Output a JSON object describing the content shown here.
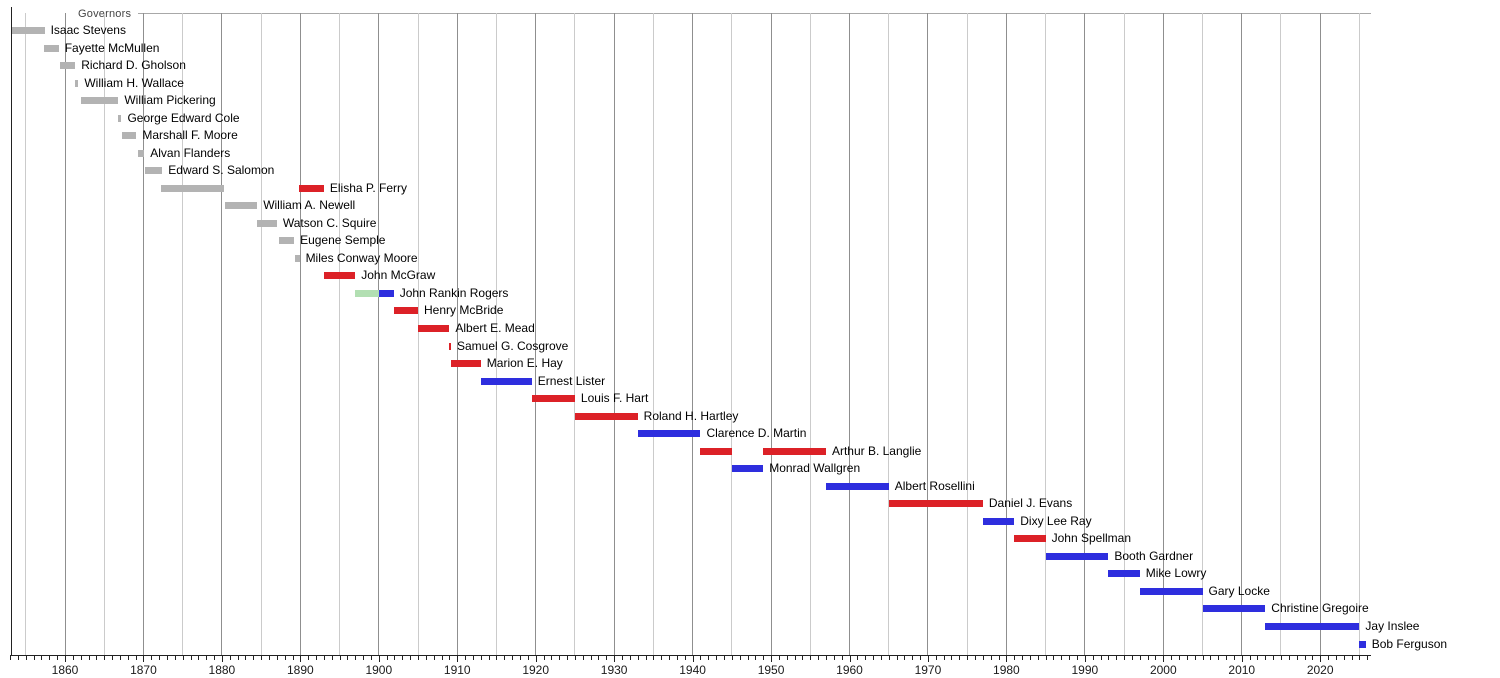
{
  "chart_data": {
    "type": "bar",
    "variant": "gantt-timeline",
    "title": "Governors",
    "xlabel": "",
    "ylabel": "",
    "xlim": [
      1853.0,
      2026.5
    ],
    "x_axis": {
      "decade_labels": [
        1860,
        1870,
        1880,
        1890,
        1900,
        1910,
        1920,
        1930,
        1940,
        1950,
        1960,
        1970,
        1980,
        1990,
        2000,
        2010,
        2020
      ],
      "gridline_interval_years": 5,
      "minor_tick_interval_years": 1,
      "grid_on": true
    },
    "colors": {
      "territorial": "#b3b3b3",
      "republican": "#dc2127",
      "democrat": "#2e2ede",
      "populist": "#b2dfb2",
      "grid_minor": "#cbcbcb",
      "grid_major": "#8f8f8f",
      "axis": "#222222",
      "title_text": "#444444",
      "title_rule": "#a8a8a8",
      "label_text": "#000000"
    },
    "governors": [
      {
        "name": "Isaac Stevens",
        "segments": [
          {
            "start": 1853.2,
            "end": 1857.4,
            "party": "territorial"
          }
        ]
      },
      {
        "name": "Fayette McMullen",
        "segments": [
          {
            "start": 1857.3,
            "end": 1859.2,
            "party": "territorial"
          }
        ]
      },
      {
        "name": "Richard D. Gholson",
        "segments": [
          {
            "start": 1859.3,
            "end": 1861.3,
            "party": "territorial"
          }
        ]
      },
      {
        "name": "William H. Wallace",
        "segments": [
          {
            "start": 1861.3,
            "end": 1861.7,
            "party": "territorial"
          }
        ]
      },
      {
        "name": "William Pickering",
        "segments": [
          {
            "start": 1862.0,
            "end": 1866.8,
            "party": "territorial"
          }
        ]
      },
      {
        "name": "George Edward Cole",
        "segments": [
          {
            "start": 1866.8,
            "end": 1867.2,
            "party": "territorial"
          }
        ]
      },
      {
        "name": "Marshall F. Moore",
        "segments": [
          {
            "start": 1867.3,
            "end": 1869.1,
            "party": "territorial"
          }
        ]
      },
      {
        "name": "Alvan Flanders",
        "segments": [
          {
            "start": 1869.3,
            "end": 1870.1,
            "party": "territorial"
          }
        ]
      },
      {
        "name": "Edward S. Salomon",
        "segments": [
          {
            "start": 1870.2,
            "end": 1872.4,
            "party": "territorial"
          }
        ]
      },
      {
        "name": "Elisha P. Ferry",
        "segments": [
          {
            "start": 1872.3,
            "end": 1880.3,
            "party": "territorial"
          },
          {
            "start": 1889.8,
            "end": 1893.0,
            "party": "republican"
          }
        ]
      },
      {
        "name": "William A. Newell",
        "segments": [
          {
            "start": 1880.4,
            "end": 1884.5,
            "party": "territorial"
          }
        ]
      },
      {
        "name": "Watson C. Squire",
        "segments": [
          {
            "start": 1884.5,
            "end": 1887.0,
            "party": "territorial"
          }
        ]
      },
      {
        "name": "Eugene Semple",
        "segments": [
          {
            "start": 1887.3,
            "end": 1889.2,
            "party": "territorial"
          }
        ]
      },
      {
        "name": "Miles Conway Moore",
        "segments": [
          {
            "start": 1889.3,
            "end": 1889.9,
            "party": "territorial"
          }
        ]
      },
      {
        "name": "John McGraw",
        "segments": [
          {
            "start": 1893.0,
            "end": 1897.0,
            "party": "republican"
          }
        ]
      },
      {
        "name": "John Rankin Rogers",
        "segments": [
          {
            "start": 1897.0,
            "end": 1900.0,
            "party": "populist"
          },
          {
            "start": 1900.0,
            "end": 1901.9,
            "party": "democrat"
          }
        ]
      },
      {
        "name": "Henry McBride",
        "segments": [
          {
            "start": 1901.9,
            "end": 1905.0,
            "party": "republican"
          }
        ]
      },
      {
        "name": "Albert E. Mead",
        "segments": [
          {
            "start": 1905.0,
            "end": 1909.0,
            "party": "republican"
          }
        ]
      },
      {
        "name": "Samuel G. Cosgrove",
        "segments": [
          {
            "start": 1909.0,
            "end": 1909.2,
            "party": "republican"
          }
        ]
      },
      {
        "name": "Marion E. Hay",
        "segments": [
          {
            "start": 1909.2,
            "end": 1913.0,
            "party": "republican"
          }
        ]
      },
      {
        "name": "Ernest Lister",
        "segments": [
          {
            "start": 1913.0,
            "end": 1919.5,
            "party": "democrat"
          }
        ]
      },
      {
        "name": "Louis F. Hart",
        "segments": [
          {
            "start": 1919.5,
            "end": 1925.0,
            "party": "republican"
          }
        ]
      },
      {
        "name": "Roland H. Hartley",
        "segments": [
          {
            "start": 1925.0,
            "end": 1933.0,
            "party": "republican"
          }
        ]
      },
      {
        "name": "Clarence D. Martin",
        "segments": [
          {
            "start": 1933.0,
            "end": 1941.0,
            "party": "democrat"
          }
        ]
      },
      {
        "name": "Arthur B. Langlie",
        "segments": [
          {
            "start": 1941.0,
            "end": 1945.0,
            "party": "republican"
          },
          {
            "start": 1949.0,
            "end": 1957.0,
            "party": "republican"
          }
        ]
      },
      {
        "name": "Monrad Wallgren",
        "segments": [
          {
            "start": 1945.0,
            "end": 1949.0,
            "party": "democrat"
          }
        ]
      },
      {
        "name": "Albert Rosellini",
        "segments": [
          {
            "start": 1957.0,
            "end": 1965.0,
            "party": "democrat"
          }
        ]
      },
      {
        "name": "Daniel J. Evans",
        "segments": [
          {
            "start": 1965.0,
            "end": 1977.0,
            "party": "republican"
          }
        ]
      },
      {
        "name": "Dixy Lee Ray",
        "segments": [
          {
            "start": 1977.0,
            "end": 1981.0,
            "party": "democrat"
          }
        ]
      },
      {
        "name": "John Spellman",
        "segments": [
          {
            "start": 1981.0,
            "end": 1985.0,
            "party": "republican"
          }
        ]
      },
      {
        "name": "Booth Gardner",
        "segments": [
          {
            "start": 1985.0,
            "end": 1993.0,
            "party": "democrat"
          }
        ]
      },
      {
        "name": "Mike Lowry",
        "segments": [
          {
            "start": 1993.0,
            "end": 1997.0,
            "party": "democrat"
          }
        ]
      },
      {
        "name": "Gary Locke",
        "segments": [
          {
            "start": 1997.0,
            "end": 2005.0,
            "party": "democrat"
          }
        ]
      },
      {
        "name": "Christine Gregoire",
        "segments": [
          {
            "start": 2005.0,
            "end": 2013.0,
            "party": "democrat"
          }
        ]
      },
      {
        "name": "Jay Inslee",
        "segments": [
          {
            "start": 2013.0,
            "end": 2025.0,
            "party": "democrat"
          }
        ]
      },
      {
        "name": "Bob Ferguson",
        "segments": [
          {
            "start": 2025.0,
            "end": 2025.8,
            "party": "democrat"
          }
        ]
      }
    ]
  }
}
